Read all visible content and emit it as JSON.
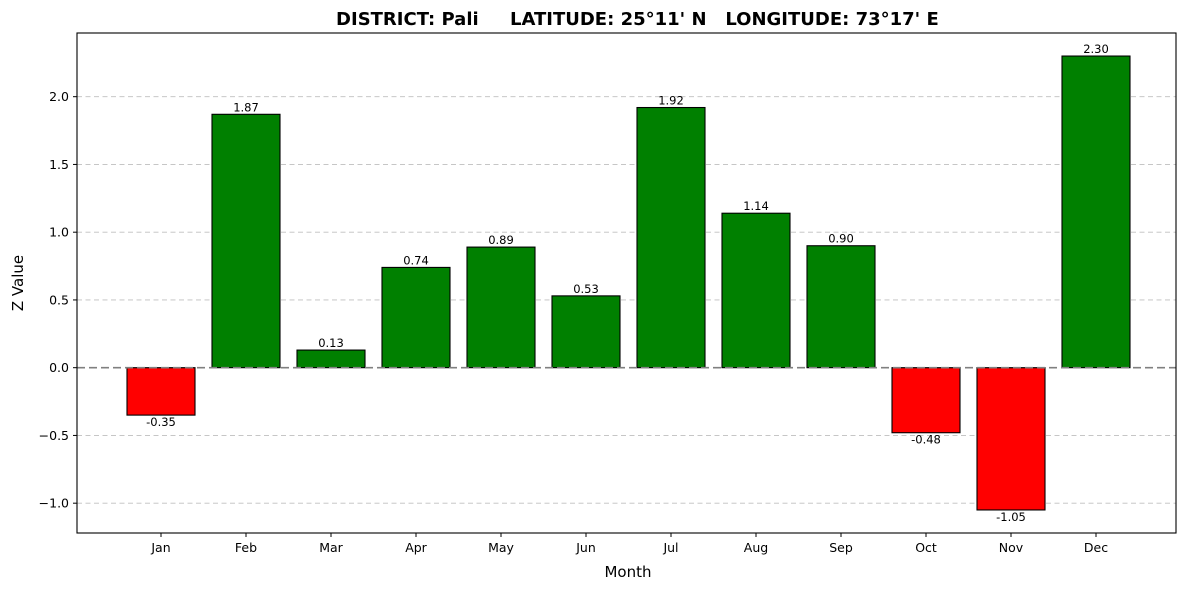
{
  "chart_data": {
    "type": "bar",
    "title_parts": [
      "DISTRICT: Pali",
      "LATITUDE: 25°11' N",
      "LONGITUDE: 73°17' E"
    ],
    "xlabel": "Month",
    "ylabel": "Z Value",
    "categories": [
      "Jan",
      "Feb",
      "Mar",
      "Apr",
      "May",
      "Jun",
      "Jul",
      "Aug",
      "Sep",
      "Oct",
      "Nov",
      "Dec"
    ],
    "values": [
      -0.35,
      1.87,
      0.13,
      0.74,
      0.89,
      0.53,
      1.92,
      1.14,
      0.9,
      -0.48,
      -1.05,
      2.3
    ],
    "value_labels": [
      "-0.35",
      "1.87",
      "0.13",
      "0.74",
      "0.89",
      "0.53",
      "1.92",
      "1.14",
      "0.90",
      "-0.48",
      "-1.05",
      "2.30"
    ],
    "yticks": [
      -1.0,
      -0.5,
      0.0,
      0.5,
      1.0,
      1.5,
      2.0
    ],
    "ytick_labels": [
      "−1.0",
      "−0.5",
      "0.0",
      "0.5",
      "1.0",
      "1.5",
      "2.0"
    ],
    "ylim": [
      -1.22,
      2.47
    ],
    "grid": true,
    "colors": {
      "positive": "#008000",
      "negative": "#ff0000",
      "zero_line": "#808080"
    }
  }
}
